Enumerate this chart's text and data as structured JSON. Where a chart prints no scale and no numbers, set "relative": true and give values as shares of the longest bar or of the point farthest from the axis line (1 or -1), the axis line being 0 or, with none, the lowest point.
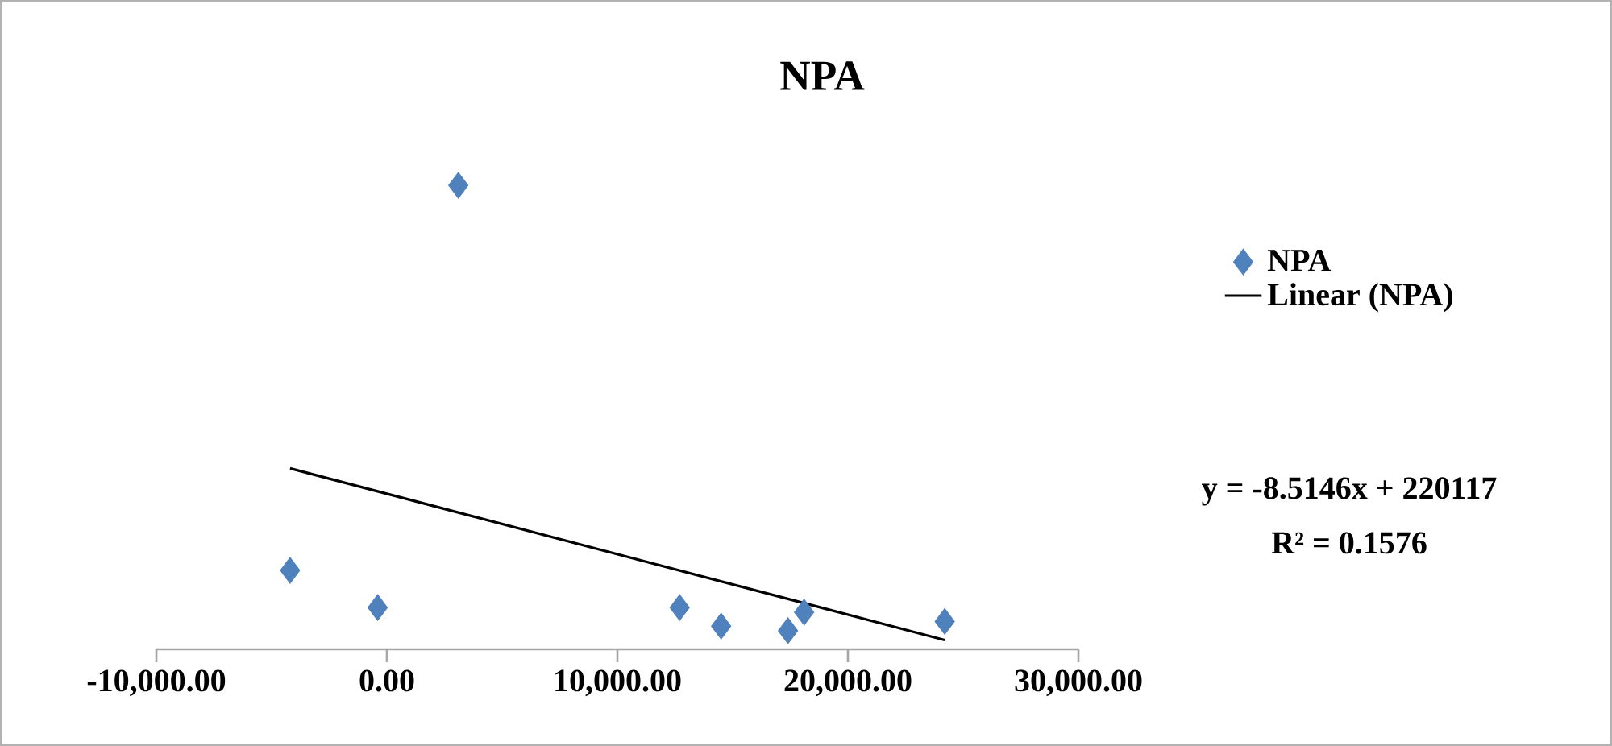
{
  "chart_data": {
    "type": "scatter",
    "title": "NPA",
    "relative": true,
    "x": [
      -4200,
      -400,
      3100,
      12700,
      14500,
      17400,
      18100,
      24200
    ],
    "series": [
      {
        "name": "NPA",
        "color": "#4f81bd",
        "marker": "diamond",
        "values": [
          0.17,
          0.09,
          1,
          0.09,
          0.05,
          0.04,
          0.08,
          0.06
        ]
      },
      {
        "name": "Linear (NPA)",
        "type": "line",
        "color": "#000000",
        "line_style": "solid",
        "x": [
          -4200,
          24200
        ],
        "values": [
          0.39,
          0.02
        ]
      }
    ],
    "xlim": [
      -10000,
      30000
    ],
    "xticks": [
      {
        "value": -10000,
        "label": "-10,000.00"
      },
      {
        "value": 0,
        "label": "0.00"
      },
      {
        "value": 10000,
        "label": "10,000.00"
      },
      {
        "value": 20000,
        "label": "20,000.00"
      },
      {
        "value": 30000,
        "label": "30,000.00"
      }
    ],
    "legend": "right",
    "grid": false,
    "annotations": [
      "y = -8.5146x + 220117",
      "R² = 0.1576"
    ]
  }
}
